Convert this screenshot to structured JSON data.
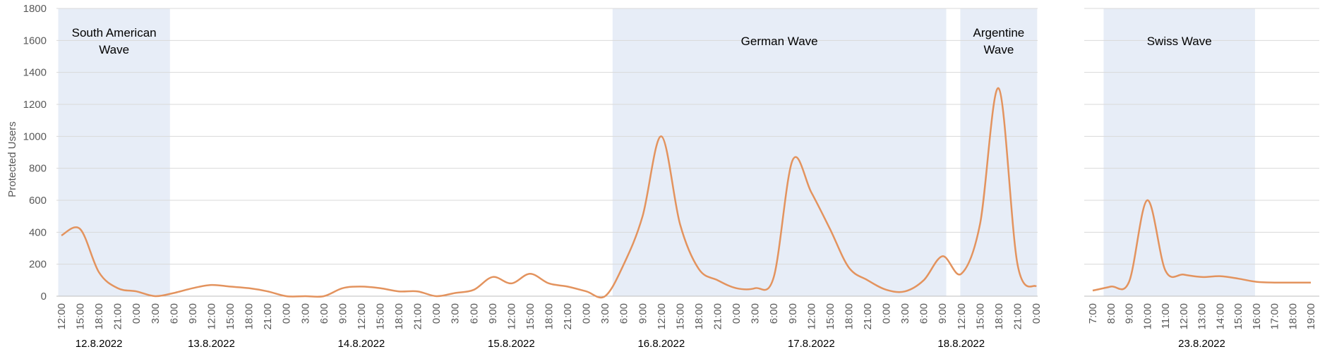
{
  "chart_data": [
    {
      "type": "line",
      "y_label": "Protected Users",
      "ylim": [
        0,
        1800
      ],
      "yticks": [
        0,
        200,
        400,
        600,
        800,
        1000,
        1200,
        1400,
        1600,
        1800
      ],
      "grid": true,
      "categories": [
        "12:00",
        "15:00",
        "18:00",
        "21:00",
        "0:00",
        "3:00",
        "6:00",
        "9:00",
        "12:00",
        "15:00",
        "18:00",
        "21:00",
        "0:00",
        "3:00",
        "6:00",
        "9:00",
        "12:00",
        "15:00",
        "18:00",
        "21:00",
        "0:00",
        "3:00",
        "6:00",
        "9:00",
        "12:00",
        "15:00",
        "18:00",
        "21:00",
        "0:00",
        "3:00",
        "6:00",
        "9:00",
        "12:00",
        "15:00",
        "18:00",
        "21:00",
        "0:00",
        "3:00",
        "6:00",
        "9:00",
        "12:00",
        "15:00",
        "18:00",
        "21:00",
        "0:00",
        "3:00",
        "6:00",
        "9:00",
        "12:00",
        "15:00",
        "18:00",
        "21:00",
        "0:00"
      ],
      "series": [
        {
          "color": "#e3935e",
          "values": [
            380,
            420,
            150,
            50,
            30,
            0,
            20,
            50,
            70,
            60,
            50,
            30,
            0,
            0,
            0,
            50,
            60,
            50,
            30,
            30,
            0,
            20,
            40,
            120,
            80,
            140,
            80,
            60,
            30,
            0,
            200,
            500,
            1000,
            450,
            170,
            100,
            50,
            50,
            120,
            850,
            650,
            420,
            180,
            100,
            40,
            30,
            100,
            250,
            140,
            450,
            1300,
            200,
            60
          ]
        }
      ],
      "date_groups": [
        {
          "label": "12.8.2022",
          "start": 0,
          "end": 4
        },
        {
          "label": "13.8.2022",
          "start": 4,
          "end": 12
        },
        {
          "label": "14.8.2022",
          "start": 12,
          "end": 20
        },
        {
          "label": "15.8.2022",
          "start": 20,
          "end": 28
        },
        {
          "label": "16.8.2022",
          "start": 28,
          "end": 36
        },
        {
          "label": "17.8.2022",
          "start": 36,
          "end": 44
        },
        {
          "label": "18.8.2022",
          "start": 44,
          "end": 52
        }
      ],
      "bands": [
        {
          "label_lines": [
            "South American",
            "Wave"
          ],
          "start": -0.17,
          "end": 5.79
        },
        {
          "label_lines": [
            "German Wave"
          ],
          "start": 29.4,
          "end": 47.2
        },
        {
          "label_lines": [
            "Argentine",
            "Wave"
          ],
          "start": 47.95,
          "end": 52.05
        }
      ]
    },
    {
      "type": "line",
      "ylim": [
        0,
        1800
      ],
      "yticks": [
        0,
        200,
        400,
        600,
        800,
        1000,
        1200,
        1400,
        1600,
        1800
      ],
      "grid": true,
      "categories": [
        "7:00",
        "8:00",
        "9:00",
        "10:00",
        "11:00",
        "12:00",
        "13:00",
        "14:00",
        "15:00",
        "16:00",
        "17:00",
        "18:00",
        "19:00"
      ],
      "series": [
        {
          "color": "#e3935e",
          "values": [
            35,
            60,
            90,
            600,
            160,
            135,
            120,
            125,
            110,
            90,
            85,
            85,
            85
          ]
        }
      ],
      "date_groups": [
        {
          "label": "23.8.2022",
          "start": 0,
          "end": 12
        }
      ],
      "bands": [
        {
          "label_lines": [
            "Swiss Wave"
          ],
          "start": 0.6,
          "end": 8.93
        }
      ]
    }
  ]
}
